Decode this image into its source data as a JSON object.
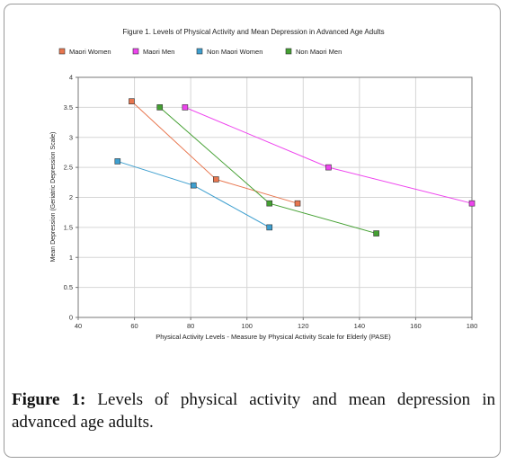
{
  "figure": {
    "caption_label": "Figure 1:",
    "caption_text": " Levels of physical activity and mean depression in advanced age adults."
  },
  "chart_data": {
    "type": "line",
    "title": "Figure 1. Levels of Physical Activity and Mean Depression in Advanced Age Adults",
    "xlabel": "Physical Activity Levels - Measure by Physical Activity Scale for Elderly (PASE)",
    "ylabel": "Mean Depression (Geriatric Depression Scale)",
    "xlim": [
      40,
      180
    ],
    "ylim": [
      0,
      4
    ],
    "x_ticks": [
      "40",
      "60",
      "80",
      "100",
      "120",
      "140",
      "160",
      "180"
    ],
    "y_ticks": [
      "0",
      "0.5",
      "1",
      "1.5",
      "2",
      "2.5",
      "3",
      "3.5",
      "4"
    ],
    "grid": true,
    "legend_position": "top",
    "series": [
      {
        "name": "Maori Women",
        "color": "#e8764f",
        "points": [
          [
            59,
            3.6
          ],
          [
            89,
            2.3
          ],
          [
            118,
            1.9
          ]
        ]
      },
      {
        "name": "Maori Men",
        "color": "#ee44ee",
        "points": [
          [
            78,
            3.5
          ],
          [
            129,
            2.5
          ],
          [
            180,
            1.9
          ]
        ]
      },
      {
        "name": "Non Maori Women",
        "color": "#3e9fcf",
        "points": [
          [
            54,
            2.6
          ],
          [
            81,
            2.2
          ],
          [
            108,
            1.5
          ]
        ]
      },
      {
        "name": "Non Maori Men",
        "color": "#44a032",
        "points": [
          [
            69,
            3.5
          ],
          [
            108,
            1.9
          ],
          [
            146,
            1.4
          ]
        ]
      }
    ]
  }
}
